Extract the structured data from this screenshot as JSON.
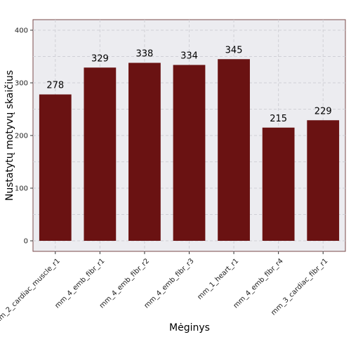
{
  "chart_data": {
    "type": "bar",
    "categories": [
      "mm_2_cardiac_muscle_r1",
      "mm_4_emb_fibr_r1",
      "mm_4_emb_fibr_r2",
      "mm_4_emb_fibr_r3",
      "mm_1_heart_r1",
      "mm_4_emb_fibr_r4",
      "mm_3_cardiac_fibr_r1"
    ],
    "values": [
      278,
      329,
      338,
      334,
      345,
      215,
      229
    ],
    "data_labels": [
      "278",
      "329",
      "338",
      "334",
      "345",
      "215",
      "229"
    ],
    "xlabel": "Mėginys",
    "ylabel": "Nustatytų motyvų skaičius",
    "ylim": [
      -20,
      420
    ],
    "yticks": [
      0,
      100,
      200,
      300,
      400
    ],
    "ytick_labels": [
      "0",
      "100",
      "200",
      "300",
      "400"
    ],
    "grid": true,
    "legend": "none",
    "colors": {
      "bar": "#6a1212",
      "panel_background": "#ececf0",
      "panel_border": "#7a4a4a",
      "grid": "#d0d0d6"
    }
  }
}
